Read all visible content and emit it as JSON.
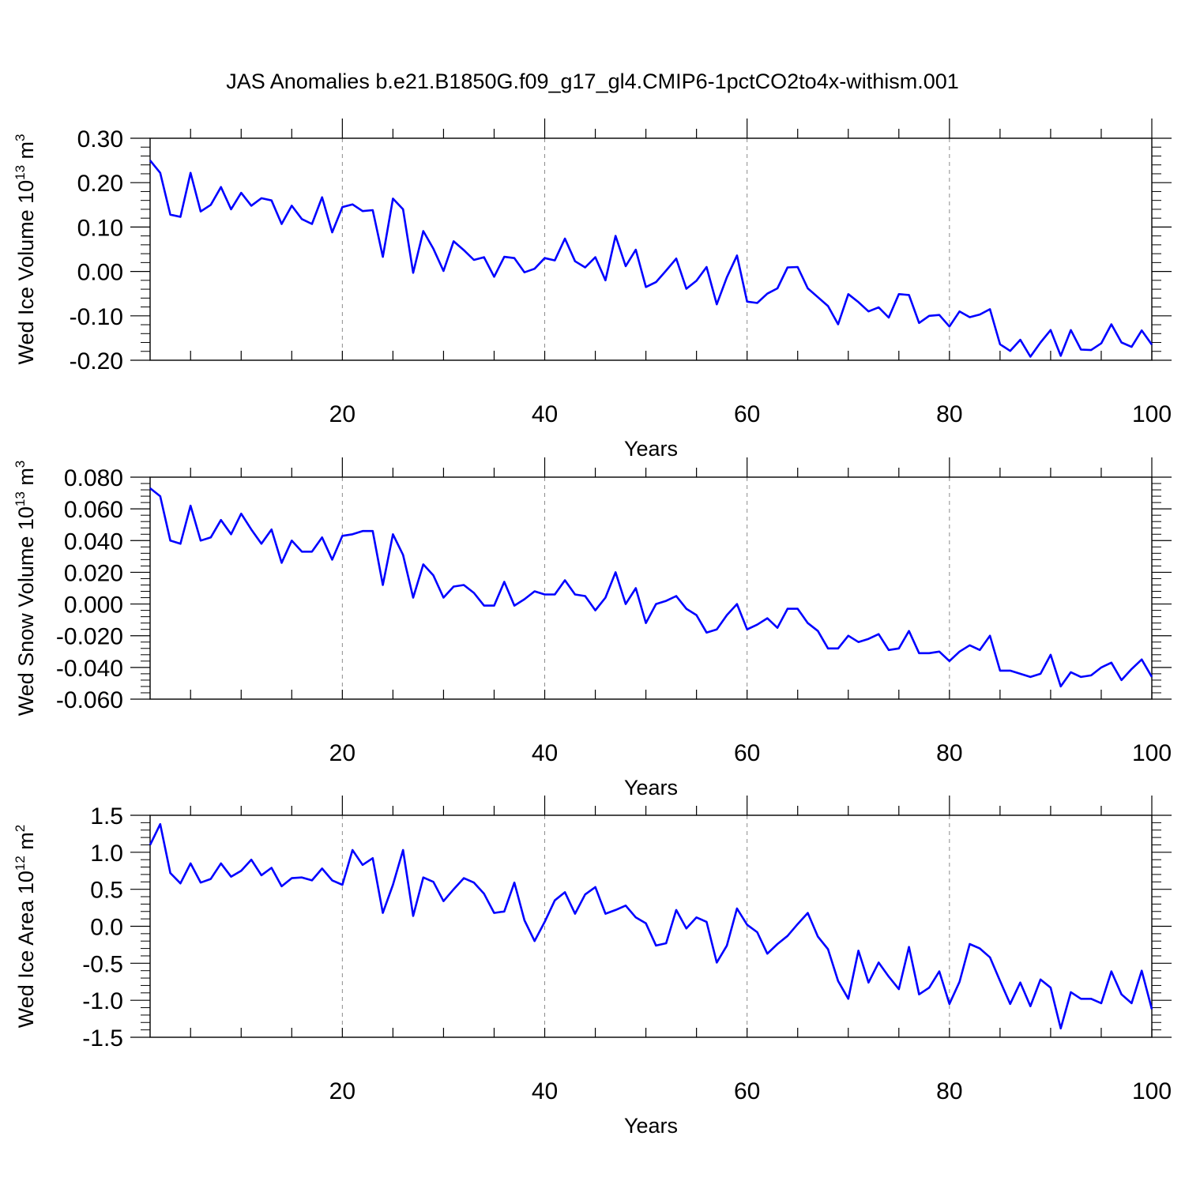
{
  "title": "JAS Anomalies b.e21.B1850G.f09_g17_gl4.CMIP6-1pctCO2to4x-withism.001",
  "line_color": "#0000ff",
  "chart_data": [
    {
      "type": "line",
      "xlabel": "Years",
      "ylabel_main": "Wed Ice Volume 10",
      "ylabel_exp": "13",
      "ylabel_unit": " m",
      "ylabel_unit_exp": "3",
      "xlim": [
        1,
        100
      ],
      "ylim": [
        -0.2,
        0.3
      ],
      "xticks": [
        20,
        40,
        60,
        80,
        100
      ],
      "xtick_labels": [
        "20",
        "40",
        "60",
        "80",
        "100"
      ],
      "yticks": [
        -0.2,
        -0.1,
        0.0,
        0.1,
        0.2,
        0.3
      ],
      "ytick_labels": [
        "-0.20",
        "-0.10",
        "0.00",
        "0.10",
        "0.20",
        "0.30"
      ],
      "grid_x": [
        20,
        40,
        60,
        80
      ],
      "series": [
        {
          "name": "Wed Ice Volume",
          "x_start": 1,
          "values": [
            0.25,
            0.222,
            0.128,
            0.123,
            0.222,
            0.135,
            0.15,
            0.19,
            0.14,
            0.177,
            0.148,
            0.165,
            0.16,
            0.107,
            0.148,
            0.118,
            0.107,
            0.167,
            0.088,
            0.145,
            0.151,
            0.136,
            0.138,
            0.033,
            0.164,
            0.14,
            -0.003,
            0.091,
            0.051,
            0.001,
            0.068,
            0.048,
            0.026,
            0.032,
            -0.012,
            0.033,
            0.03,
            -0.002,
            0.006,
            0.03,
            0.025,
            0.074,
            0.023,
            0.009,
            0.032,
            -0.02,
            0.08,
            0.012,
            0.049,
            -0.035,
            -0.024,
            0.002,
            0.029,
            -0.039,
            -0.021,
            0.01,
            -0.074,
            -0.013,
            0.036,
            -0.068,
            -0.071,
            -0.05,
            -0.038,
            0.009,
            0.01,
            -0.038,
            -0.058,
            -0.078,
            -0.119,
            -0.051,
            -0.069,
            -0.09,
            -0.081,
            -0.104,
            -0.051,
            -0.053,
            -0.116,
            -0.1,
            -0.098,
            -0.124,
            -0.09,
            -0.103,
            -0.097,
            -0.085,
            -0.164,
            -0.179,
            -0.154,
            -0.192,
            -0.16,
            -0.132,
            -0.19,
            -0.132,
            -0.176,
            -0.177,
            -0.162,
            -0.119,
            -0.16,
            -0.17,
            -0.133,
            -0.165
          ]
        }
      ]
    },
    {
      "type": "line",
      "xlabel": "Years",
      "ylabel_main": "Wed Snow Volume 10",
      "ylabel_exp": "13",
      "ylabel_unit": " m",
      "ylabel_unit_exp": "3",
      "xlim": [
        1,
        100
      ],
      "ylim": [
        -0.06,
        0.08
      ],
      "xticks": [
        20,
        40,
        60,
        80,
        100
      ],
      "xtick_labels": [
        "20",
        "40",
        "60",
        "80",
        "100"
      ],
      "yticks": [
        -0.06,
        -0.04,
        -0.02,
        0.0,
        0.02,
        0.04,
        0.06,
        0.08
      ],
      "ytick_labels": [
        "-0.060",
        "-0.040",
        "-0.020",
        "0.000",
        "0.020",
        "0.040",
        "0.060",
        "0.080"
      ],
      "grid_x": [
        20,
        40,
        60,
        80
      ],
      "series": [
        {
          "name": "Wed Snow Volume",
          "x_start": 1,
          "values": [
            0.073,
            0.068,
            0.04,
            0.038,
            0.062,
            0.04,
            0.042,
            0.053,
            0.044,
            0.057,
            0.047,
            0.038,
            0.047,
            0.026,
            0.04,
            0.033,
            0.033,
            0.042,
            0.028,
            0.043,
            0.044,
            0.046,
            0.046,
            0.012,
            0.044,
            0.031,
            0.004,
            0.025,
            0.018,
            0.004,
            0.011,
            0.012,
            0.007,
            -0.001,
            -0.001,
            0.014,
            -0.001,
            0.003,
            0.008,
            0.006,
            0.006,
            0.015,
            0.006,
            0.005,
            -0.004,
            0.004,
            0.02,
            0.0,
            0.01,
            -0.012,
            0.0,
            0.002,
            0.005,
            -0.003,
            -0.007,
            -0.018,
            -0.016,
            -0.007,
            0.0,
            -0.016,
            -0.013,
            -0.009,
            -0.015,
            -0.003,
            -0.003,
            -0.012,
            -0.017,
            -0.028,
            -0.028,
            -0.02,
            -0.024,
            -0.022,
            -0.019,
            -0.029,
            -0.028,
            -0.017,
            -0.031,
            -0.031,
            -0.03,
            -0.036,
            -0.03,
            -0.026,
            -0.029,
            -0.02,
            -0.042,
            -0.042,
            -0.044,
            -0.046,
            -0.044,
            -0.032,
            -0.052,
            -0.043,
            -0.046,
            -0.045,
            -0.04,
            -0.037,
            -0.048,
            -0.041,
            -0.035,
            -0.046
          ]
        }
      ]
    },
    {
      "type": "line",
      "xlabel": "Years",
      "ylabel_main": "Wed Ice Area 10",
      "ylabel_exp": "12",
      "ylabel_unit": " m",
      "ylabel_unit_exp": "2",
      "xlim": [
        1,
        100
      ],
      "ylim": [
        -1.5,
        1.5
      ],
      "xticks": [
        20,
        40,
        60,
        80,
        100
      ],
      "xtick_labels": [
        "20",
        "40",
        "60",
        "80",
        "100"
      ],
      "yticks": [
        -1.5,
        -1.0,
        -0.5,
        0.0,
        0.5,
        1.0,
        1.5
      ],
      "ytick_labels": [
        "-1.5",
        "-1.0",
        "-0.5",
        "0.0",
        "0.5",
        "1.0",
        "1.5"
      ],
      "grid_x": [
        20,
        40,
        60,
        80
      ],
      "series": [
        {
          "name": "Wed Ice Area",
          "x_start": 1,
          "values": [
            1.1,
            1.38,
            0.72,
            0.58,
            0.85,
            0.59,
            0.64,
            0.85,
            0.67,
            0.75,
            0.9,
            0.69,
            0.79,
            0.54,
            0.65,
            0.66,
            0.62,
            0.78,
            0.62,
            0.56,
            1.03,
            0.83,
            0.92,
            0.18,
            0.56,
            1.03,
            0.14,
            0.66,
            0.6,
            0.34,
            0.5,
            0.65,
            0.59,
            0.44,
            0.18,
            0.2,
            0.59,
            0.08,
            -0.2,
            0.06,
            0.35,
            0.46,
            0.17,
            0.43,
            0.53,
            0.17,
            0.22,
            0.28,
            0.12,
            0.04,
            -0.26,
            -0.23,
            0.22,
            -0.03,
            0.12,
            0.06,
            -0.49,
            -0.26,
            0.24,
            0.02,
            -0.08,
            -0.37,
            -0.24,
            -0.13,
            0.03,
            0.18,
            -0.14,
            -0.31,
            -0.74,
            -0.98,
            -0.33,
            -0.76,
            -0.49,
            -0.68,
            -0.85,
            -0.28,
            -0.92,
            -0.83,
            -0.61,
            -1.05,
            -0.75,
            -0.24,
            -0.3,
            -0.42,
            -0.74,
            -1.05,
            -0.76,
            -1.08,
            -0.72,
            -0.83,
            -1.38,
            -0.89,
            -0.98,
            -0.98,
            -1.04,
            -0.61,
            -0.92,
            -1.04,
            -0.6,
            -1.12
          ]
        }
      ]
    }
  ]
}
